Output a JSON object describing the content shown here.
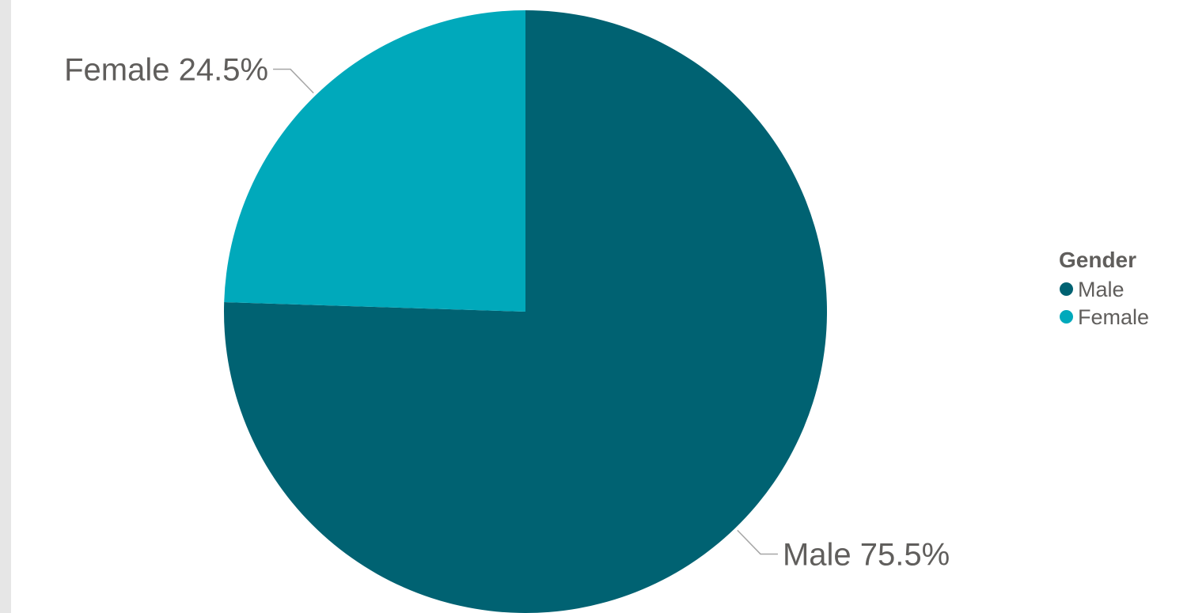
{
  "chart_data": {
    "type": "pie",
    "series": [
      {
        "name": "Male",
        "value": 75.5,
        "label": "Male 75.5%",
        "color": "#006272"
      },
      {
        "name": "Female",
        "value": 24.5,
        "label": "Female 24.5%",
        "color": "#00a9bb"
      }
    ],
    "legend": {
      "title": "Gender",
      "position": "right",
      "items": [
        "Male",
        "Female"
      ]
    }
  }
}
